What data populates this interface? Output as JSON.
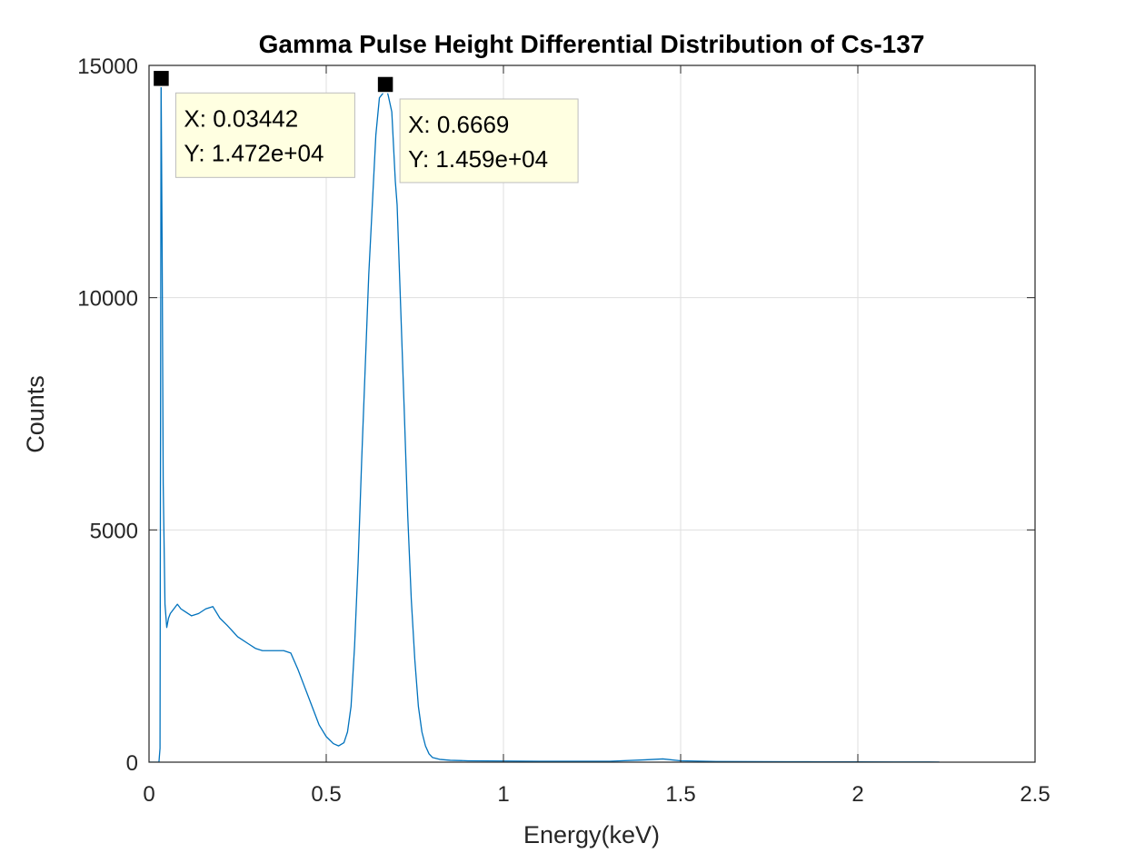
{
  "chart_data": {
    "type": "line",
    "title": "Gamma Pulse Height Differential Distribution of Cs-137",
    "xlabel": "Energy(keV)",
    "ylabel": "Counts",
    "xlim": [
      0,
      2.5
    ],
    "ylim": [
      0,
      15000
    ],
    "xticks": [
      0,
      0.5,
      1,
      1.5,
      2,
      2.5
    ],
    "xtick_labels": [
      "0",
      "0.5",
      "1",
      "1.5",
      "2",
      "2.5"
    ],
    "yticks": [
      0,
      5000,
      10000,
      15000
    ],
    "ytick_labels": [
      "0",
      "5000",
      "10000",
      "15000"
    ],
    "grid": true,
    "line_color": "#0072BD",
    "series": [
      {
        "x": [
          0.0,
          0.02,
          0.028,
          0.031,
          0.034,
          0.037,
          0.04,
          0.045,
          0.05,
          0.055,
          0.06,
          0.07,
          0.08,
          0.09,
          0.1,
          0.12,
          0.14,
          0.16,
          0.18,
          0.2,
          0.22,
          0.25,
          0.28,
          0.3,
          0.32,
          0.35,
          0.38,
          0.4,
          0.42,
          0.44,
          0.46,
          0.48,
          0.5,
          0.52,
          0.535,
          0.55,
          0.56,
          0.57,
          0.58,
          0.59,
          0.6,
          0.61,
          0.62,
          0.63,
          0.64,
          0.65,
          0.66,
          0.6669,
          0.675,
          0.685,
          0.695,
          0.7,
          0.71,
          0.72,
          0.73,
          0.74,
          0.75,
          0.76,
          0.77,
          0.78,
          0.79,
          0.8,
          0.82,
          0.85,
          0.9,
          1.0,
          1.1,
          1.2,
          1.3,
          1.4,
          1.45,
          1.5,
          1.6,
          1.7,
          1.8,
          1.9,
          2.0,
          2.1,
          2.2,
          2.23
        ],
        "y": [
          0,
          0,
          0,
          300,
          14720,
          11000,
          6000,
          3400,
          2900,
          3100,
          3200,
          3300,
          3400,
          3300,
          3250,
          3150,
          3200,
          3300,
          3350,
          3100,
          2950,
          2700,
          2550,
          2450,
          2400,
          2400,
          2400,
          2350,
          2000,
          1600,
          1200,
          800,
          550,
          400,
          350,
          420,
          650,
          1200,
          2500,
          4300,
          6500,
          8500,
          10500,
          12000,
          13500,
          14300,
          14400,
          14590,
          14350,
          14000,
          12500,
          12000,
          9800,
          7600,
          5300,
          3500,
          2200,
          1200,
          650,
          350,
          180,
          100,
          60,
          40,
          30,
          25,
          20,
          18,
          20,
          50,
          70,
          30,
          15,
          12,
          10,
          8,
          6,
          5,
          4,
          3
        ]
      }
    ],
    "datatips": [
      {
        "x": 0.03442,
        "y": 14720,
        "x_text": "X: 0.03442",
        "y_text": "Y: 1.472e+04"
      },
      {
        "x": 0.6669,
        "y": 14590,
        "x_text": "X: 0.6669",
        "y_text": "Y: 1.459e+04"
      }
    ]
  }
}
